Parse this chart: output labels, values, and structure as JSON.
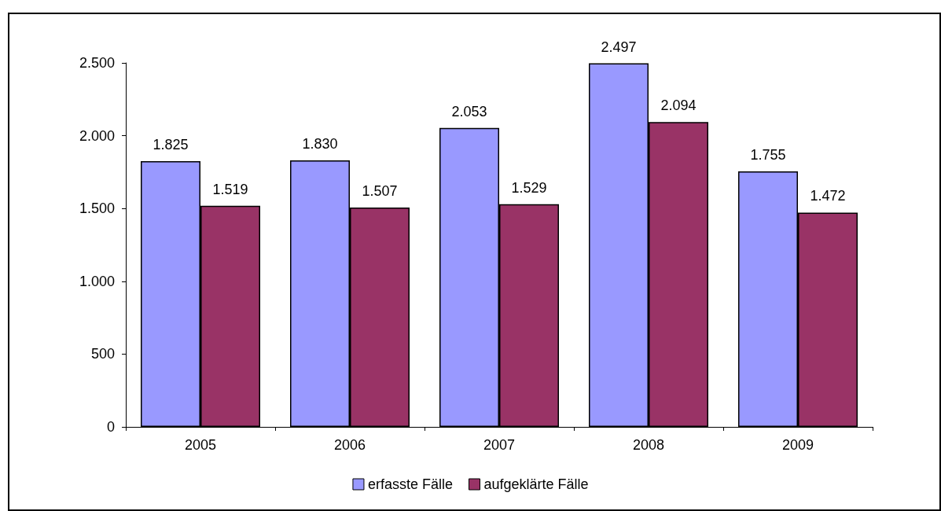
{
  "chart_data": {
    "type": "bar",
    "categories": [
      "2005",
      "2006",
      "2007",
      "2008",
      "2009"
    ],
    "series": [
      {
        "name": "erfasste Fälle",
        "color": "#9999ff",
        "values": [
          1825,
          1830,
          2053,
          2497,
          1755
        ],
        "value_labels": [
          "1.825",
          "1.830",
          "2.053",
          "2.497",
          "1.755"
        ]
      },
      {
        "name": "aufgeklärte Fälle",
        "color": "#993366",
        "values": [
          1519,
          1507,
          1529,
          2094,
          1472
        ],
        "value_labels": [
          "1.519",
          "1.507",
          "1.529",
          "2.094",
          "1.472"
        ]
      }
    ],
    "ylim": [
      0,
      2500
    ],
    "yticks": [
      0,
      500,
      {
        "value": 1000,
        "label": "1.000"
      },
      {
        "value": 1500,
        "label": "1.500"
      },
      {
        "value": 2000,
        "label": "2.000"
      },
      {
        "value": 2500,
        "label": "2.500"
      }
    ],
    "grid": false,
    "legend": "bottom"
  }
}
